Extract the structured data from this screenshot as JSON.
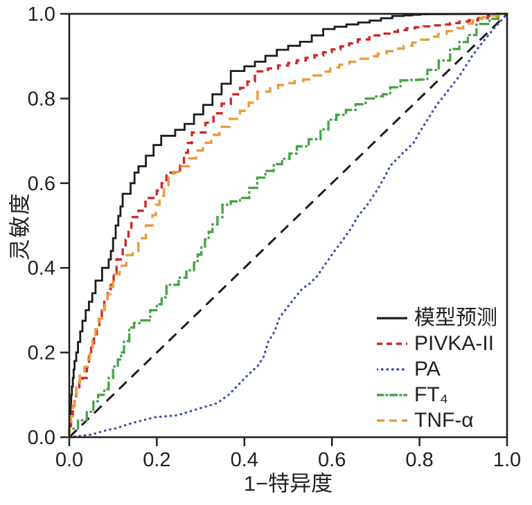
{
  "figure": {
    "background_color": "#ffffff",
    "text_color": "#231f20"
  },
  "chart_data": {
    "type": "line",
    "subtype": "roc-curves",
    "title": "",
    "xlabel": "1−特异度",
    "ylabel": "灵敏度",
    "xlim": [
      0,
      1
    ],
    "ylim": [
      0,
      1
    ],
    "xticks": [
      0,
      0.2,
      0.4,
      0.6,
      0.8,
      1.0
    ],
    "yticks": [
      0,
      0.2,
      0.4,
      0.6,
      0.8,
      1.0
    ],
    "xtick_labels": [
      "0.0",
      "0.2",
      "0.4",
      "0.6",
      "0.8",
      "1.0"
    ],
    "ytick_labels": [
      "0.0",
      "0.2",
      "0.4",
      "0.6",
      "0.8",
      "1.0"
    ],
    "grid": false,
    "legend_position": "inside-lower-right",
    "frame_color": "#231f20",
    "reference_line": {
      "name": "chance-diagonal",
      "color": "#1c1c1c",
      "line_style": "long-dash",
      "points": [
        [
          0,
          0
        ],
        [
          1,
          1
        ]
      ]
    },
    "series": [
      {
        "name": "模型预测",
        "color": "#1c1c1c",
        "line_style": "solid",
        "stepped": true,
        "points": [
          [
            0,
            0
          ],
          [
            0.003,
            0.05
          ],
          [
            0.006,
            0.1
          ],
          [
            0.012,
            0.16
          ],
          [
            0.02,
            0.2
          ],
          [
            0.03,
            0.25
          ],
          [
            0.045,
            0.3
          ],
          [
            0.06,
            0.34
          ],
          [
            0.075,
            0.37
          ],
          [
            0.09,
            0.4
          ],
          [
            0.1,
            0.44
          ],
          [
            0.106,
            0.47
          ],
          [
            0.112,
            0.5
          ],
          [
            0.122,
            0.545
          ],
          [
            0.14,
            0.575
          ],
          [
            0.158,
            0.625
          ],
          [
            0.175,
            0.64
          ],
          [
            0.21,
            0.69
          ],
          [
            0.242,
            0.712
          ],
          [
            0.285,
            0.74
          ],
          [
            0.327,
            0.785
          ],
          [
            0.369,
            0.835
          ],
          [
            0.4,
            0.865
          ],
          [
            0.448,
            0.887
          ],
          [
            0.5,
            0.915
          ],
          [
            0.554,
            0.934
          ],
          [
            0.606,
            0.964
          ],
          [
            0.66,
            0.975
          ],
          [
            0.712,
            0.984
          ],
          [
            0.764,
            0.995
          ],
          [
            0.82,
            0.999
          ],
          [
            1,
            1
          ]
        ]
      },
      {
        "name": "PIVKA-II",
        "color": "#cd2728",
        "line_style": "dashed",
        "stepped": true,
        "points": [
          [
            0,
            0
          ],
          [
            0.008,
            0.04
          ],
          [
            0.016,
            0.09
          ],
          [
            0.03,
            0.13
          ],
          [
            0.04,
            0.14
          ],
          [
            0.05,
            0.19
          ],
          [
            0.063,
            0.24
          ],
          [
            0.08,
            0.3
          ],
          [
            0.095,
            0.35
          ],
          [
            0.108,
            0.39
          ],
          [
            0.122,
            0.42
          ],
          [
            0.142,
            0.49
          ],
          [
            0.158,
            0.52
          ],
          [
            0.174,
            0.535
          ],
          [
            0.2,
            0.565
          ],
          [
            0.222,
            0.6
          ],
          [
            0.253,
            0.625
          ],
          [
            0.28,
            0.695
          ],
          [
            0.311,
            0.72
          ],
          [
            0.348,
            0.765
          ],
          [
            0.39,
            0.81
          ],
          [
            0.424,
            0.84
          ],
          [
            0.454,
            0.864
          ],
          [
            0.5,
            0.878
          ],
          [
            0.58,
            0.902
          ],
          [
            0.659,
            0.93
          ],
          [
            0.712,
            0.949
          ],
          [
            0.79,
            0.966
          ],
          [
            0.87,
            0.975
          ],
          [
            0.934,
            0.985
          ],
          [
            1,
            1
          ]
        ]
      },
      {
        "name": "PA",
        "color": "#3b4ba8",
        "line_style": "dotted",
        "stepped": false,
        "points": [
          [
            0,
            0
          ],
          [
            0.05,
            0.006
          ],
          [
            0.08,
            0.015
          ],
          [
            0.11,
            0.022
          ],
          [
            0.142,
            0.033
          ],
          [
            0.195,
            0.047
          ],
          [
            0.248,
            0.052
          ],
          [
            0.285,
            0.064
          ],
          [
            0.337,
            0.08
          ],
          [
            0.364,
            0.1
          ],
          [
            0.38,
            0.117
          ],
          [
            0.406,
            0.145
          ],
          [
            0.432,
            0.17
          ],
          [
            0.444,
            0.19
          ],
          [
            0.454,
            0.224
          ],
          [
            0.469,
            0.25
          ],
          [
            0.48,
            0.282
          ],
          [
            0.496,
            0.304
          ],
          [
            0.512,
            0.325
          ],
          [
            0.533,
            0.352
          ],
          [
            0.546,
            0.36
          ],
          [
            0.565,
            0.379
          ],
          [
            0.585,
            0.409
          ],
          [
            0.606,
            0.44
          ],
          [
            0.625,
            0.466
          ],
          [
            0.644,
            0.494
          ],
          [
            0.66,
            0.523
          ],
          [
            0.68,
            0.548
          ],
          [
            0.701,
            0.58
          ],
          [
            0.717,
            0.608
          ],
          [
            0.733,
            0.641
          ],
          [
            0.759,
            0.668
          ],
          [
            0.786,
            0.695
          ],
          [
            0.8,
            0.72
          ],
          [
            0.839,
            0.784
          ],
          [
            0.891,
            0.853
          ],
          [
            0.92,
            0.9
          ],
          [
            0.944,
            0.933
          ],
          [
            0.97,
            0.965
          ],
          [
            1,
            1
          ]
        ]
      },
      {
        "name": "FT₄",
        "color": "#47a447",
        "line_style": "dash-dot",
        "stepped": true,
        "points": [
          [
            0,
            0
          ],
          [
            0.02,
            0.02
          ],
          [
            0.04,
            0.04
          ],
          [
            0.055,
            0.06
          ],
          [
            0.066,
            0.085
          ],
          [
            0.08,
            0.1
          ],
          [
            0.09,
            0.113
          ],
          [
            0.1,
            0.14
          ],
          [
            0.111,
            0.167
          ],
          [
            0.125,
            0.2
          ],
          [
            0.137,
            0.227
          ],
          [
            0.148,
            0.259
          ],
          [
            0.165,
            0.27
          ],
          [
            0.185,
            0.276
          ],
          [
            0.2,
            0.3
          ],
          [
            0.211,
            0.314
          ],
          [
            0.222,
            0.33
          ],
          [
            0.25,
            0.36
          ],
          [
            0.285,
            0.394
          ],
          [
            0.31,
            0.45
          ],
          [
            0.327,
            0.485
          ],
          [
            0.35,
            0.52
          ],
          [
            0.369,
            0.549
          ],
          [
            0.411,
            0.565
          ],
          [
            0.448,
            0.613
          ],
          [
            0.486,
            0.645
          ],
          [
            0.52,
            0.67
          ],
          [
            0.574,
            0.704
          ],
          [
            0.61,
            0.75
          ],
          [
            0.654,
            0.773
          ],
          [
            0.7,
            0.8
          ],
          [
            0.733,
            0.81
          ],
          [
            0.78,
            0.843
          ],
          [
            0.818,
            0.845
          ],
          [
            0.87,
            0.89
          ],
          [
            0.891,
            0.917
          ],
          [
            0.93,
            0.95
          ],
          [
            0.96,
            0.976
          ],
          [
            1,
            1
          ]
        ]
      },
      {
        "name": "TNF-α",
        "color": "#e89c3e",
        "line_style": "long-dash",
        "stepped": true,
        "points": [
          [
            0,
            0
          ],
          [
            0.008,
            0.05
          ],
          [
            0.016,
            0.1
          ],
          [
            0.024,
            0.118
          ],
          [
            0.035,
            0.15
          ],
          [
            0.047,
            0.183
          ],
          [
            0.06,
            0.23
          ],
          [
            0.075,
            0.28
          ],
          [
            0.087,
            0.32
          ],
          [
            0.1,
            0.355
          ],
          [
            0.115,
            0.385
          ],
          [
            0.13,
            0.405
          ],
          [
            0.145,
            0.43
          ],
          [
            0.158,
            0.44
          ],
          [
            0.175,
            0.47
          ],
          [
            0.19,
            0.5
          ],
          [
            0.206,
            0.549
          ],
          [
            0.237,
            0.613
          ],
          [
            0.274,
            0.64
          ],
          [
            0.305,
            0.677
          ],
          [
            0.343,
            0.714
          ],
          [
            0.39,
            0.752
          ],
          [
            0.43,
            0.79
          ],
          [
            0.459,
            0.816
          ],
          [
            0.495,
            0.832
          ],
          [
            0.554,
            0.845
          ],
          [
            0.617,
            0.873
          ],
          [
            0.685,
            0.894
          ],
          [
            0.764,
            0.918
          ],
          [
            0.843,
            0.946
          ],
          [
            0.9,
            0.966
          ],
          [
            0.944,
            0.988
          ],
          [
            1,
            1
          ]
        ]
      }
    ]
  }
}
